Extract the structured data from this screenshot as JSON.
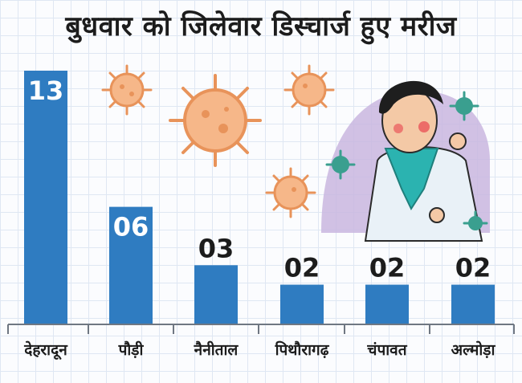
{
  "chart_data": {
    "type": "bar",
    "title": "बुधवार को जिलेवार डिस्चार्ज हुए मरीज",
    "categories": [
      "देहरादून",
      "पौड़ी",
      "नैनीताल",
      "पिथौरागढ़",
      "चंपावत",
      "अल्मोड़ा"
    ],
    "values": [
      13,
      6,
      3,
      2,
      2,
      2
    ],
    "value_labels": [
      "13",
      "06",
      "03",
      "02",
      "02",
      "02"
    ],
    "xlabel": "",
    "ylabel": "",
    "ylim": [
      0,
      13
    ],
    "grid": true,
    "legend": "none"
  },
  "colors": {
    "bar": "#2f7cc1",
    "title": "#1c1c1c",
    "bar_label_inside": "#ffffff",
    "bar_label_outside": "#1c1c1c",
    "virus": "#f2a36a",
    "virus_teal": "#3a9f8f",
    "illustration_bg": "#c9b6df"
  },
  "icons": [
    "virus-icon",
    "sick-person-illustration"
  ]
}
